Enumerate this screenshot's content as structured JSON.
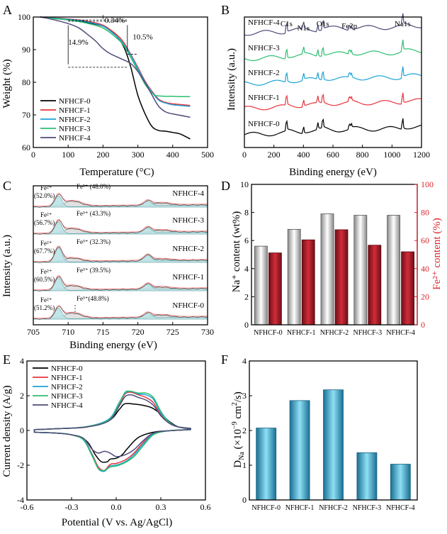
{
  "figure": {
    "panel_labels": [
      "A",
      "B",
      "C",
      "D",
      "E",
      "F"
    ]
  },
  "colors": {
    "NFHCF-0": "#000000",
    "NFHCF-1": "#e8343c",
    "NFHCF-2": "#1ba3d6",
    "NFHCF-3": "#2ebf71",
    "NFHCF-4": "#4e4b7a",
    "fe_axis": "#d9282f",
    "na_bar_mid": "#ffffff",
    "na_bar_edge": "#7a7a7a",
    "fe_bar_mid": "#d22c3a",
    "fe_bar_edge": "#6e0e16",
    "d_bar_mid": "#8fe0f5",
    "d_bar_edge": "#1a6f93",
    "fill_fe2": "#b9e0e4",
    "fill_fe3": "#d9d9d9",
    "red_envelope": "#f07a7a"
  },
  "chart_data": [
    {
      "panel": "A",
      "type": "line",
      "xlabel": "Temperature (°C)",
      "ylabel": "Weight (%)",
      "xlim": [
        0,
        500
      ],
      "ylim": [
        60,
        100
      ],
      "xticks": [
        0,
        100,
        200,
        300,
        400,
        500
      ],
      "yticks": [
        60,
        70,
        80,
        90,
        100
      ],
      "legend_position": "bottom-left",
      "annotations": [
        {
          "text": "0.34%",
          "x": 205,
          "y": 98.3
        },
        {
          "text": "10.5%",
          "x": 285,
          "y": 93.2
        },
        {
          "text": "14.9%",
          "x": 100,
          "y": 91.5
        }
      ],
      "series": [
        {
          "name": "NFHCF-0",
          "x": [
            20,
            50,
            100,
            150,
            200,
            225,
            250,
            265,
            280,
            300,
            320,
            340,
            360,
            380,
            400,
            420,
            440,
            450
          ],
          "y": [
            100,
            99.7,
            99.1,
            98.4,
            97.2,
            95.6,
            92.6,
            89.5,
            84.5,
            76,
            70.5,
            66.5,
            65.2,
            65,
            64.6,
            64.2,
            63.2,
            62.6
          ]
        },
        {
          "name": "NFHCF-1",
          "x": [
            20,
            50,
            100,
            150,
            200,
            240,
            260,
            280,
            300,
            320,
            340,
            360,
            380,
            400,
            420,
            450
          ],
          "y": [
            100,
            99.8,
            99.4,
            98.8,
            97.5,
            94.5,
            92.1,
            88.5,
            84.6,
            80.5,
            77.3,
            74.8,
            73.8,
            73.4,
            73.2,
            72.9
          ]
        },
        {
          "name": "NFHCF-2",
          "x": [
            20,
            50,
            100,
            150,
            200,
            240,
            260,
            280,
            300,
            320,
            340,
            360,
            380,
            400,
            420,
            450
          ],
          "y": [
            100,
            99.7,
            99.3,
            98.6,
            97.2,
            94,
            91.6,
            88.2,
            84.2,
            80.2,
            77,
            74.5,
            73.6,
            73.1,
            72.9,
            72.6
          ]
        },
        {
          "name": "NFHCF-3",
          "x": [
            20,
            50,
            100,
            150,
            200,
            240,
            260,
            280,
            300,
            320,
            340,
            350,
            360,
            380,
            400,
            420,
            450
          ],
          "y": [
            100,
            99.6,
            99.1,
            98.2,
            96.6,
            93.5,
            91.2,
            87.5,
            83.6,
            79.5,
            76.8,
            76,
            75.8,
            75.7,
            75.7,
            75.6,
            75.6
          ]
        },
        {
          "name": "NFHCF-4",
          "x": [
            20,
            50,
            100,
            130,
            160,
            180,
            200,
            220,
            250,
            280,
            300,
            320,
            340,
            360,
            380,
            400,
            420,
            450
          ],
          "y": [
            100,
            99.4,
            98,
            96.7,
            94.3,
            92.5,
            90.3,
            88.8,
            87.3,
            85.7,
            83.3,
            80,
            76.2,
            72.6,
            70.9,
            70.3,
            69.9,
            69.3
          ]
        }
      ]
    },
    {
      "panel": "B",
      "type": "line",
      "xlabel": "Binding energy (eV)",
      "ylabel": "Intensity (a.u.)",
      "xlim": [
        0,
        1200
      ],
      "xticks": [
        0,
        200,
        400,
        600,
        800,
        1000,
        1200
      ],
      "peak_labels": [
        {
          "text": "C1s",
          "x": 285
        },
        {
          "text": "N1s",
          "x": 400
        },
        {
          "text": "O1s",
          "x": 531
        },
        {
          "text": "Fe2p",
          "x": 711
        },
        {
          "text": "Na1s",
          "x": 1072
        }
      ],
      "peaks": [
        {
          "x": 285,
          "h": 1.0
        },
        {
          "x": 400,
          "h": 0.6
        },
        {
          "x": 497,
          "h": 0.55
        },
        {
          "x": 531,
          "h": 0.9
        },
        {
          "x": 711,
          "h": 0.5
        },
        {
          "x": 724,
          "h": 0.35
        },
        {
          "x": 1072,
          "h": 1.0
        }
      ],
      "series": [
        {
          "name": "NFHCF-0",
          "label": "NFHCF-0",
          "offset": 0
        },
        {
          "name": "NFHCF-1",
          "label": "NFHCF-1",
          "offset": 1
        },
        {
          "name": "NFHCF-2",
          "label": "NFHCF-2",
          "offset": 2
        },
        {
          "name": "NFHCF-3",
          "label": "NFHCF-3",
          "offset": 3
        },
        {
          "name": "NFHCF-4",
          "label": "NFHCF-4",
          "offset": 4
        }
      ]
    },
    {
      "panel": "C",
      "type": "area",
      "xlabel": "Binding energy (eV)",
      "ylabel": "Intensity (a.u.)",
      "xlim": [
        705,
        730
      ],
      "xticks": [
        705,
        710,
        715,
        720,
        725,
        730
      ],
      "peak_positions": {
        "fe2_main": 708.6,
        "fe3_main": 710.6,
        "fe2_sat": 721.4,
        "fe3_sat": 723.4
      },
      "series": [
        {
          "name": "NFHCF-0",
          "fe2_label": "Fe²⁺",
          "fe2_value": "(51.2%)",
          "fe3_text": "Fe³⁺(48.8%)",
          "fe2_frac": 51.2
        },
        {
          "name": "NFHCF-1",
          "fe2_label": "Fe²⁺",
          "fe2_value": "(60.5%)",
          "fe3_text": "Fe³⁺ (39.5%)",
          "fe2_frac": 60.5
        },
        {
          "name": "NFHCF-2",
          "fe2_label": "Fe²⁺",
          "fe2_value": "(67.7%)",
          "fe3_text": "Fe³⁺ (32.3%)",
          "fe2_frac": 67.7
        },
        {
          "name": "NFHCF-3",
          "fe2_label": "Fe²⁺",
          "fe2_value": "(56.7%)",
          "fe3_text": "Fe³⁺ (43.3%)",
          "fe2_frac": 56.7
        },
        {
          "name": "NFHCF-4",
          "fe2_label": "Fe²⁺",
          "fe2_value": "(52.0%)",
          "fe3_text": "Fe³⁺ (48.0%)",
          "fe2_frac": 52.0
        }
      ]
    },
    {
      "panel": "D",
      "type": "bar",
      "categories": [
        "NFHCF-0",
        "NFHCF-1",
        "NFHCF-2",
        "NFHCF-3",
        "NFHCF-4"
      ],
      "ylabel_left": "Na⁺ content (wt%)",
      "ylabel_right": "Fe²⁺ content (%)",
      "ylim_left": [
        0,
        10
      ],
      "ylim_right": [
        0,
        100
      ],
      "yticks_left": [
        0,
        2,
        4,
        6,
        8,
        10
      ],
      "yticks_right": [
        0,
        20,
        40,
        60,
        80,
        100
      ],
      "series": [
        {
          "name": "Na+ content (wt%)",
          "axis": "left",
          "values": [
            5.6,
            6.8,
            7.9,
            7.8,
            7.8
          ]
        },
        {
          "name": "Fe2+ content (%)",
          "axis": "right",
          "values": [
            51.2,
            60.5,
            67.7,
            56.7,
            52.0
          ]
        }
      ]
    },
    {
      "panel": "E",
      "type": "line",
      "xlabel": "Potential (V vs. Ag/AgCl)",
      "ylabel": "Current density (A/g)",
      "xlim": [
        -0.6,
        0.6
      ],
      "ylim": [
        -4,
        4
      ],
      "xticks": [
        -0.6,
        -0.3,
        0.0,
        0.3,
        0.6
      ],
      "yticks": [
        -4,
        -2,
        0,
        2,
        4
      ],
      "legend_position": "top-left",
      "series": [
        {
          "name": "NFHCF-0",
          "upper_x": [
            -0.55,
            -0.4,
            -0.2,
            -0.05,
            0.02,
            0.05,
            0.08,
            0.12,
            0.18,
            0.24,
            0.3,
            0.36,
            0.42,
            0.5
          ],
          "upper_y": [
            0.05,
            0.1,
            0.2,
            0.55,
            1.2,
            1.5,
            1.55,
            1.52,
            1.45,
            1.3,
            0.95,
            0.5,
            0.2,
            0.1
          ],
          "lower_x": [
            0.5,
            0.35,
            0.25,
            0.15,
            0.08,
            0.04,
            0.0,
            -0.04,
            -0.06,
            -0.1,
            -0.14,
            -0.2,
            -0.3,
            -0.4,
            -0.55
          ],
          "lower_y": [
            0.05,
            -0.02,
            -0.1,
            -0.4,
            -1.0,
            -1.4,
            -1.6,
            -1.65,
            -1.8,
            -1.8,
            -1.4,
            -0.6,
            -0.25,
            -0.15,
            -0.1
          ]
        },
        {
          "name": "NFHCF-1",
          "upper_x": [
            -0.55,
            -0.4,
            -0.2,
            -0.05,
            0.02,
            0.06,
            0.1,
            0.15,
            0.2,
            0.25,
            0.3,
            0.36,
            0.42,
            0.5
          ],
          "upper_y": [
            0.05,
            0.1,
            0.2,
            0.6,
            1.5,
            2.1,
            2.2,
            2.05,
            1.9,
            1.6,
            0.9,
            0.4,
            0.2,
            0.12
          ],
          "lower_x": [
            0.5,
            0.35,
            0.25,
            0.18,
            0.12,
            0.06,
            0.0,
            -0.04,
            -0.08,
            -0.12,
            -0.16,
            -0.22,
            -0.3,
            -0.4,
            -0.55
          ],
          "lower_y": [
            0.05,
            -0.02,
            -0.2,
            -0.7,
            -1.3,
            -1.7,
            -1.9,
            -1.95,
            -2.3,
            -2.1,
            -1.4,
            -0.5,
            -0.25,
            -0.15,
            -0.1
          ]
        },
        {
          "name": "NFHCF-2",
          "upper_x": [
            -0.55,
            -0.4,
            -0.2,
            -0.05,
            0.02,
            0.06,
            0.1,
            0.15,
            0.2,
            0.25,
            0.3,
            0.36,
            0.42,
            0.5
          ],
          "upper_y": [
            0.05,
            0.1,
            0.22,
            0.65,
            1.6,
            2.15,
            2.25,
            2.1,
            2.05,
            1.8,
            1.0,
            0.45,
            0.2,
            0.12
          ],
          "lower_x": [
            0.5,
            0.35,
            0.25,
            0.18,
            0.12,
            0.06,
            0.0,
            -0.04,
            -0.08,
            -0.12,
            -0.16,
            -0.22,
            -0.3,
            -0.4,
            -0.55
          ],
          "lower_y": [
            0.05,
            -0.02,
            -0.2,
            -0.8,
            -1.4,
            -1.8,
            -2.0,
            -2.05,
            -2.35,
            -2.2,
            -1.45,
            -0.5,
            -0.25,
            -0.15,
            -0.1
          ]
        },
        {
          "name": "NFHCF-3",
          "upper_x": [
            -0.55,
            -0.4,
            -0.2,
            -0.05,
            0.02,
            0.06,
            0.1,
            0.15,
            0.2,
            0.25,
            0.3,
            0.36,
            0.42,
            0.5
          ],
          "upper_y": [
            0.05,
            0.1,
            0.22,
            0.6,
            1.55,
            2.2,
            2.25,
            2.15,
            2.15,
            1.9,
            1.1,
            0.45,
            0.2,
            0.12
          ],
          "lower_x": [
            0.5,
            0.35,
            0.25,
            0.18,
            0.12,
            0.06,
            0.0,
            -0.04,
            -0.08,
            -0.12,
            -0.16,
            -0.22,
            -0.3,
            -0.4,
            -0.55
          ],
          "lower_y": [
            0.05,
            -0.02,
            -0.25,
            -0.9,
            -1.5,
            -1.85,
            -2.05,
            -2.1,
            -2.3,
            -2.2,
            -1.5,
            -0.55,
            -0.25,
            -0.15,
            -0.1
          ]
        },
        {
          "name": "NFHCF-4",
          "upper_x": [
            -0.55,
            -0.4,
            -0.2,
            -0.05,
            0.02,
            0.06,
            0.1,
            0.15,
            0.2,
            0.25,
            0.3,
            0.36,
            0.42,
            0.5
          ],
          "upper_y": [
            0.05,
            0.1,
            0.2,
            0.55,
            1.4,
            1.95,
            2.05,
            1.9,
            1.75,
            1.45,
            0.85,
            0.4,
            0.2,
            0.12
          ],
          "lower_x": [
            0.5,
            0.35,
            0.25,
            0.18,
            0.12,
            0.06,
            0.0,
            -0.04,
            -0.08,
            -0.12,
            -0.16,
            -0.22,
            -0.3,
            -0.4,
            -0.55
          ],
          "lower_y": [
            0.05,
            -0.02,
            -0.15,
            -0.6,
            -1.1,
            -1.4,
            -1.5,
            -1.3,
            -1.2,
            -1.3,
            -1.1,
            -0.45,
            -0.25,
            -0.15,
            -0.1
          ]
        }
      ]
    },
    {
      "panel": "F",
      "type": "bar",
      "categories": [
        "NFHCF-0",
        "NFHCF-1",
        "NFHCF-2",
        "NFHCF-3",
        "NFHCF-4"
      ],
      "ylabel_main": "D",
      "ylabel_sub": "Na",
      "ylabel_rest": " (×10",
      "ylabel_exp": "−9",
      "ylabel_tail": " cm",
      "ylabel_exp2": "2",
      "ylabel_end": "/s)",
      "ylim": [
        0,
        4
      ],
      "yticks": [
        0,
        1,
        2,
        3,
        4
      ],
      "values": [
        2.07,
        2.86,
        3.17,
        1.36,
        1.03
      ]
    }
  ]
}
